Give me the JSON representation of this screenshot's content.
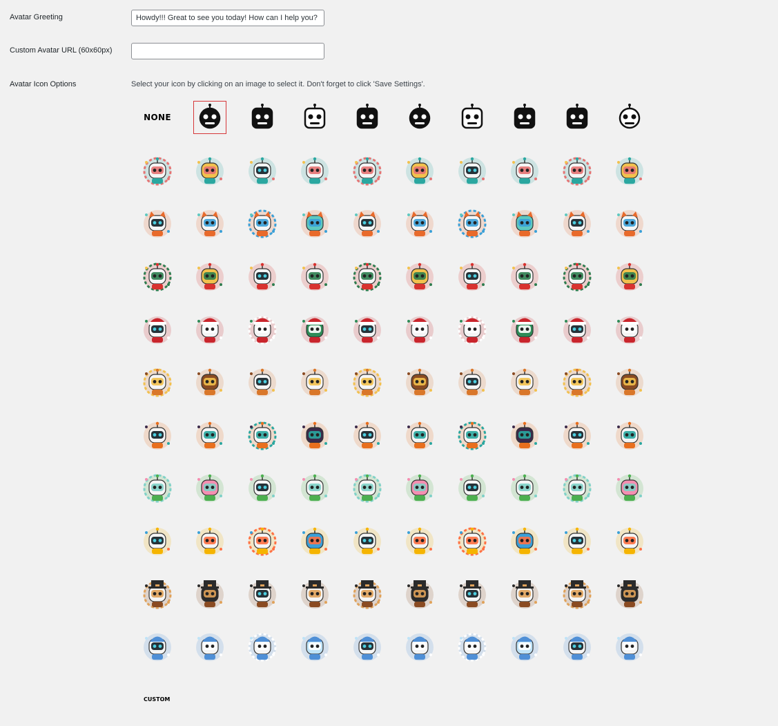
{
  "greeting": {
    "label": "Avatar Greeting",
    "value": "Howdy!!! Great to see you today! How can I help you?"
  },
  "custom_url": {
    "label": "Custom Avatar URL (60x60px)",
    "value": ""
  },
  "icon_options": {
    "label": "Avatar Icon Options",
    "description": "Select your icon by clicking on an image to select it. Don't forget to click 'Save Settings'.",
    "none_label": "NONE",
    "custom_label": "CUSTOM",
    "selected_index": 1,
    "selected_color": "#d63638",
    "rows": [
      {
        "theme": "monochrome-robot",
        "accent": "#111111",
        "count": 10
      },
      {
        "theme": "mixed-robot",
        "accent": "#2aa7a0",
        "count": 10
      },
      {
        "theme": "cute-animal-robot",
        "accent": "#e86a2b",
        "count": 10
      },
      {
        "theme": "lunar-new-year",
        "accent": "#d8322f",
        "count": 10
      },
      {
        "theme": "christmas",
        "accent": "#c9252c",
        "count": 10
      },
      {
        "theme": "autumn",
        "accent": "#d9772a",
        "count": 10
      },
      {
        "theme": "halloween",
        "accent": "#e86f1e",
        "count": 10
      },
      {
        "theme": "spring",
        "accent": "#4caf50",
        "count": 10
      },
      {
        "theme": "summer",
        "accent": "#f5b400",
        "count": 10
      },
      {
        "theme": "thanksgiving",
        "accent": "#8a4b22",
        "count": 10
      },
      {
        "theme": "winter",
        "accent": "#4f8fd6",
        "count": 10
      }
    ]
  }
}
